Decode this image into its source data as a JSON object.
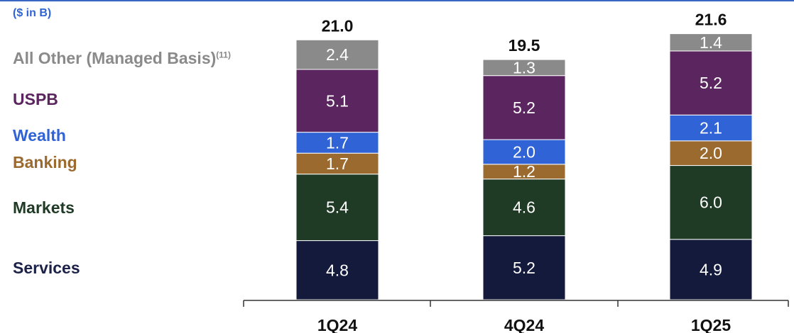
{
  "chart_data": {
    "type": "bar",
    "stacked": true,
    "unit_label": "($ in B)",
    "categories": [
      "1Q24",
      "4Q24",
      "1Q25"
    ],
    "totals": [
      "21.0",
      "19.5",
      "21.6"
    ],
    "series": [
      {
        "name": "Services",
        "values": [
          4.8,
          5.2,
          4.9
        ],
        "color": "#131a3b",
        "label_color": "#1c2148"
      },
      {
        "name": "Markets",
        "values": [
          5.4,
          4.6,
          6.0
        ],
        "color": "#1f3a25",
        "label_color": "#1f3a25"
      },
      {
        "name": "Banking",
        "values": [
          1.7,
          1.2,
          2.0
        ],
        "color": "#9b6a2f",
        "label_color": "#9b6a2f"
      },
      {
        "name": "Wealth",
        "values": [
          1.7,
          2.0,
          2.1
        ],
        "color": "#2f63d6",
        "label_color": "#2f63d6"
      },
      {
        "name": "USPB",
        "values": [
          5.1,
          5.2,
          5.2
        ],
        "color": "#5b2560",
        "label_color": "#5b2560"
      },
      {
        "name": "All Other (Managed Basis)",
        "name_note": "(11)",
        "values": [
          2.4,
          1.3,
          1.4
        ],
        "color": "#8a8a8a",
        "label_color": "#8a8a8a"
      }
    ]
  }
}
